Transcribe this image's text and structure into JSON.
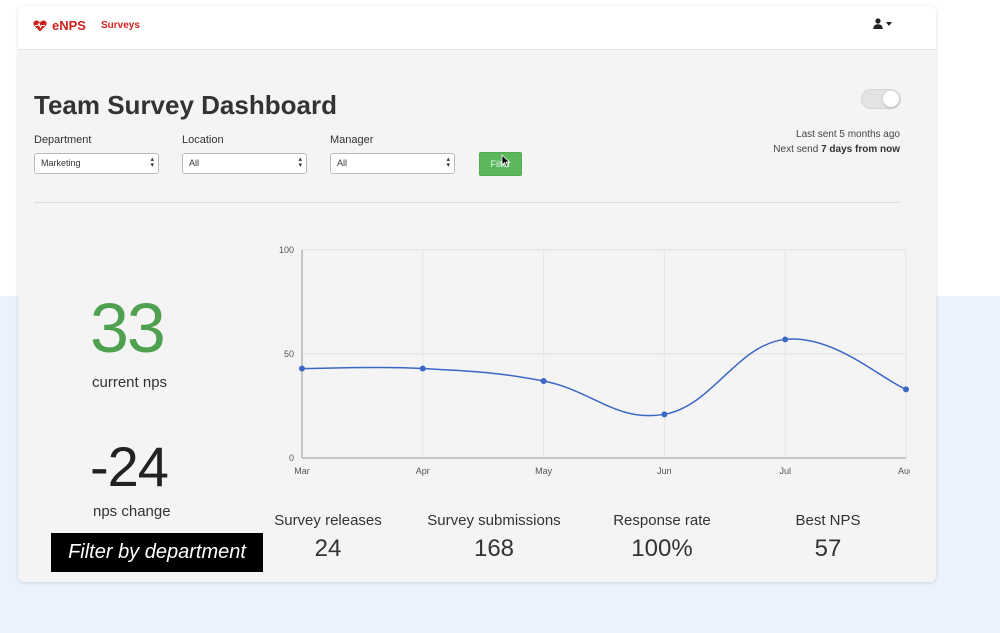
{
  "nav": {
    "brand": "eNPS",
    "link_surveys": "Surveys"
  },
  "header": {
    "title": "Team Survey Dashboard"
  },
  "filters": {
    "department": {
      "label": "Department",
      "value": "Marketing"
    },
    "location": {
      "label": "Location",
      "value": "All"
    },
    "manager": {
      "label": "Manager",
      "value": "All"
    },
    "button_label": "Filter"
  },
  "schedule": {
    "last_sent": "Last sent 5 months ago",
    "next_send_prefix": "Next send ",
    "next_send_bold": "7 days from now"
  },
  "summary": {
    "current_nps": "33",
    "current_nps_label": "current nps",
    "nps_change": "-24",
    "nps_change_label": "nps change"
  },
  "stats": [
    {
      "label": "Survey releases",
      "value": "24"
    },
    {
      "label": "Survey submissions",
      "value": "168"
    },
    {
      "label": "Response rate",
      "value": "100%"
    },
    {
      "label": "Best NPS",
      "value": "57"
    }
  ],
  "caption": "Filter by department",
  "colors": {
    "brand": "#d0211c",
    "nps_green": "#4fa14f",
    "button_green": "#5cb85c",
    "line": "#3c67c6"
  },
  "icons": {
    "brand": "heart-pulse-icon",
    "user": "user-icon",
    "dropdown": "caret-down-icon"
  },
  "chart_data": {
    "type": "line",
    "categories": [
      "Mar",
      "Apr",
      "May",
      "Jun",
      "Jul",
      "Aug"
    ],
    "series": [
      {
        "values": [
          43,
          43,
          37,
          21,
          57,
          33
        ]
      }
    ],
    "y_ticks": [
      "0",
      "50",
      "100"
    ],
    "ylim": [
      0,
      100
    ],
    "grid": true,
    "smooth": true,
    "legend": "none"
  }
}
